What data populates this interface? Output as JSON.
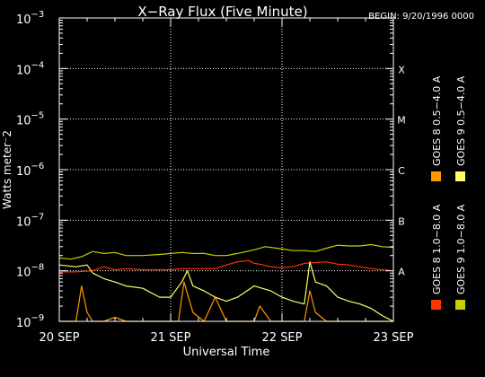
{
  "chart_data": {
    "type": "line",
    "title": "X−Ray Flux (Five Minute)",
    "begin_label": "BEGIN: 9/20/1996 0000",
    "xlabel": "Universal Time",
    "ylabel": "Watts meter⁻2",
    "y_scale": "log",
    "ylim": [
      1e-09,
      0.001
    ],
    "y_ticks": [
      {
        "base": "10",
        "exp": "−9",
        "value": 1e-09
      },
      {
        "base": "10",
        "exp": "−8",
        "value": 1e-08
      },
      {
        "base": "10",
        "exp": "−7",
        "value": 1e-07
      },
      {
        "base": "10",
        "exp": "−6",
        "value": 1e-06
      },
      {
        "base": "10",
        "exp": "−5",
        "value": 1e-05
      },
      {
        "base": "10",
        "exp": "−4",
        "value": 0.0001
      },
      {
        "base": "10",
        "exp": "−3",
        "value": 0.001
      }
    ],
    "xlim": [
      0,
      3
    ],
    "x_ticks": [
      {
        "label": "20 SEP",
        "value": 0
      },
      {
        "label": "21 SEP",
        "value": 1
      },
      {
        "label": "22 SEP",
        "value": 2
      },
      {
        "label": "23 SEP",
        "value": 3
      }
    ],
    "flare_classes": [
      {
        "label": "A",
        "value": 1e-08
      },
      {
        "label": "B",
        "value": 1e-07
      },
      {
        "label": "C",
        "value": 1e-06
      },
      {
        "label": "M",
        "value": 1e-05
      },
      {
        "label": "X",
        "value": 0.0001
      }
    ],
    "grid": true,
    "legend_position": "right",
    "series": [
      {
        "name": "GOES 8 1.0−8.0 A",
        "color": "#ff3300",
        "x": [
          0,
          0.15,
          0.3,
          0.4,
          0.5,
          0.6,
          0.75,
          0.9,
          1.0,
          1.1,
          1.25,
          1.4,
          1.5,
          1.6,
          1.7,
          1.75,
          1.8,
          1.9,
          2.0,
          2.1,
          2.2,
          2.4,
          2.5,
          2.6,
          2.7,
          2.8,
          3.0
        ],
        "values": [
          9.5e-09,
          9.5e-09,
          1e-08,
          1.2e-08,
          1.05e-08,
          1.1e-08,
          1.05e-08,
          1.05e-08,
          1.05e-08,
          1.1e-08,
          1.1e-08,
          1.1e-08,
          1.3e-08,
          1.5e-08,
          1.6e-08,
          1.4e-08,
          1.35e-08,
          1.2e-08,
          1.15e-08,
          1.2e-08,
          1.4e-08,
          1.5e-08,
          1.35e-08,
          1.3e-08,
          1.2e-08,
          1.1e-08,
          1e-08
        ]
      },
      {
        "name": "GOES 8 0.5−4.0 A",
        "color": "#ff9900",
        "x": [
          0,
          0.15,
          0.2,
          0.25,
          0.3,
          0.4,
          0.5,
          0.6,
          0.75,
          0.9,
          1.0,
          1.07,
          1.12,
          1.2,
          1.3,
          1.4,
          1.5,
          1.75,
          1.8,
          1.9,
          2.0,
          2.2,
          2.25,
          2.3,
          2.4,
          2.5,
          2.6,
          2.8,
          3.0
        ],
        "values": [
          1e-09,
          1e-09,
          5e-09,
          1.5e-09,
          1e-09,
          1e-09,
          1.2e-09,
          1e-09,
          1e-09,
          1e-09,
          1e-09,
          1e-09,
          6e-09,
          1.5e-09,
          1e-09,
          3e-09,
          1e-09,
          1e-09,
          2e-09,
          1e-09,
          1e-09,
          1e-09,
          4e-09,
          1.5e-09,
          1e-09,
          1e-09,
          1e-09,
          1e-09,
          1e-09
        ]
      },
      {
        "name": "GOES 9 1.0−8.0 A",
        "color": "#cccc00",
        "x": [
          0,
          0.1,
          0.2,
          0.3,
          0.4,
          0.5,
          0.6,
          0.75,
          0.9,
          1.0,
          1.1,
          1.2,
          1.3,
          1.4,
          1.5,
          1.6,
          1.75,
          1.85,
          1.9,
          2.0,
          2.1,
          2.2,
          2.3,
          2.4,
          2.5,
          2.6,
          2.7,
          2.8,
          2.9,
          3.0
        ],
        "values": [
          1.8e-08,
          1.7e-08,
          1.9e-08,
          2.4e-08,
          2.2e-08,
          2.3e-08,
          2e-08,
          2e-08,
          2.1e-08,
          2.2e-08,
          2.3e-08,
          2.2e-08,
          2.2e-08,
          2e-08,
          2e-08,
          2.2e-08,
          2.6e-08,
          3e-08,
          2.9e-08,
          2.7e-08,
          2.5e-08,
          2.5e-08,
          2.4e-08,
          2.8e-08,
          3.2e-08,
          3.1e-08,
          3.1e-08,
          3.3e-08,
          3e-08,
          2.9e-08
        ]
      },
      {
        "name": "GOES 9 0.5−4.0 A",
        "color": "#ffff66",
        "x": [
          0,
          0.15,
          0.25,
          0.3,
          0.4,
          0.5,
          0.6,
          0.75,
          0.9,
          1.0,
          1.1,
          1.15,
          1.2,
          1.3,
          1.4,
          1.5,
          1.6,
          1.75,
          1.9,
          2.0,
          2.1,
          2.2,
          2.25,
          2.3,
          2.4,
          2.5,
          2.6,
          2.7,
          2.8,
          2.9,
          3.0
        ],
        "values": [
          1.3e-08,
          1.2e-08,
          1.3e-08,
          9e-09,
          7e-09,
          6e-09,
          5e-09,
          4.5e-09,
          3e-09,
          3e-09,
          6e-09,
          1e-08,
          5e-09,
          4e-09,
          3e-09,
          2.5e-09,
          3e-09,
          5e-09,
          4e-09,
          3e-09,
          2.5e-09,
          2.2e-09,
          1.5e-08,
          6e-09,
          5e-09,
          3e-09,
          2.5e-09,
          2.2e-09,
          1.8e-09,
          1.3e-09,
          1e-09
        ]
      }
    ]
  }
}
